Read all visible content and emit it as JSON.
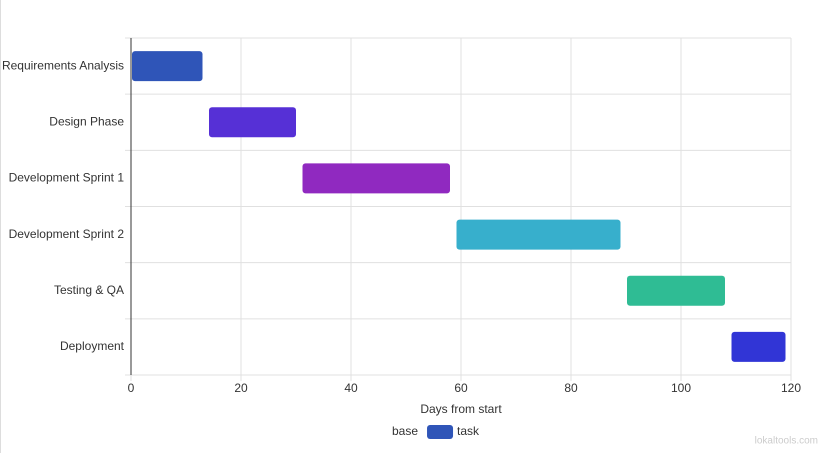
{
  "chart_data": {
    "type": "gantt",
    "categories": [
      "Requirements Analysis",
      "Design Phase",
      "Development Sprint 1",
      "Development Sprint 2",
      "Testing & QA",
      "Deployment"
    ],
    "series": [
      {
        "name": "base",
        "color": "transparent",
        "values": [
          0,
          14,
          31,
          59,
          90,
          109
        ]
      },
      {
        "name": "task",
        "color": "#2f55b8",
        "colors": [
          "#2f55b8",
          "#5630d6",
          "#9029c0",
          "#37afcc",
          "#2fbc94",
          "#3135d6"
        ],
        "values": [
          13,
          16,
          27,
          30,
          18,
          10
        ]
      }
    ],
    "x_label": "Days from start",
    "xlim": [
      0,
      120
    ],
    "xticks": [
      0,
      20,
      40,
      60,
      80,
      100,
      120
    ],
    "grid": true,
    "legend": "bottom",
    "stacked": true,
    "watermark": "lokaltools.com"
  }
}
